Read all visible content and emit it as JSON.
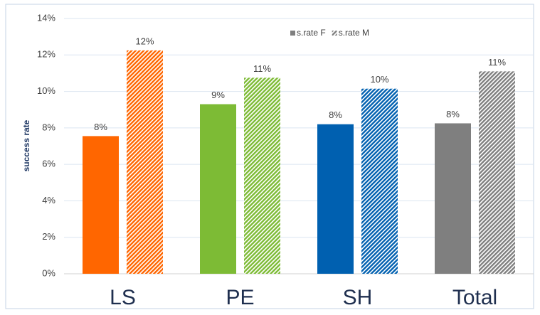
{
  "chart_data": {
    "type": "bar",
    "y_label": "success rate",
    "categories": [
      "LS",
      "PE",
      "SH",
      "Total"
    ],
    "category_colors": [
      "#ff6600",
      "#7dbb35",
      "#0060b0",
      "#7f7f7f"
    ],
    "series": [
      {
        "name": "s.rate F",
        "color": "#7f7f7f",
        "pattern": "solid",
        "values": [
          7.55,
          9.3,
          8.2,
          8.25
        ],
        "value_labels": [
          "8%",
          "9%",
          "8%",
          "8%"
        ]
      },
      {
        "name": "s.rate M",
        "color": "#7f7f7f",
        "pattern": "hatched",
        "values": [
          12.25,
          10.75,
          10.15,
          11.1
        ],
        "value_labels": [
          "12%",
          "11%",
          "10%",
          "11%"
        ]
      }
    ],
    "ylim": [
      0,
      14
    ],
    "yticks": [
      {
        "value": 0,
        "label": "0%"
      },
      {
        "value": 2,
        "label": "2%"
      },
      {
        "value": 4,
        "label": "4%"
      },
      {
        "value": 6,
        "label": "6%"
      },
      {
        "value": 8,
        "label": "8%"
      },
      {
        "value": 10,
        "label": "10%"
      },
      {
        "value": 12,
        "label": "12%"
      },
      {
        "value": 14,
        "label": "14%"
      }
    ],
    "grid": true,
    "legend": "top"
  }
}
